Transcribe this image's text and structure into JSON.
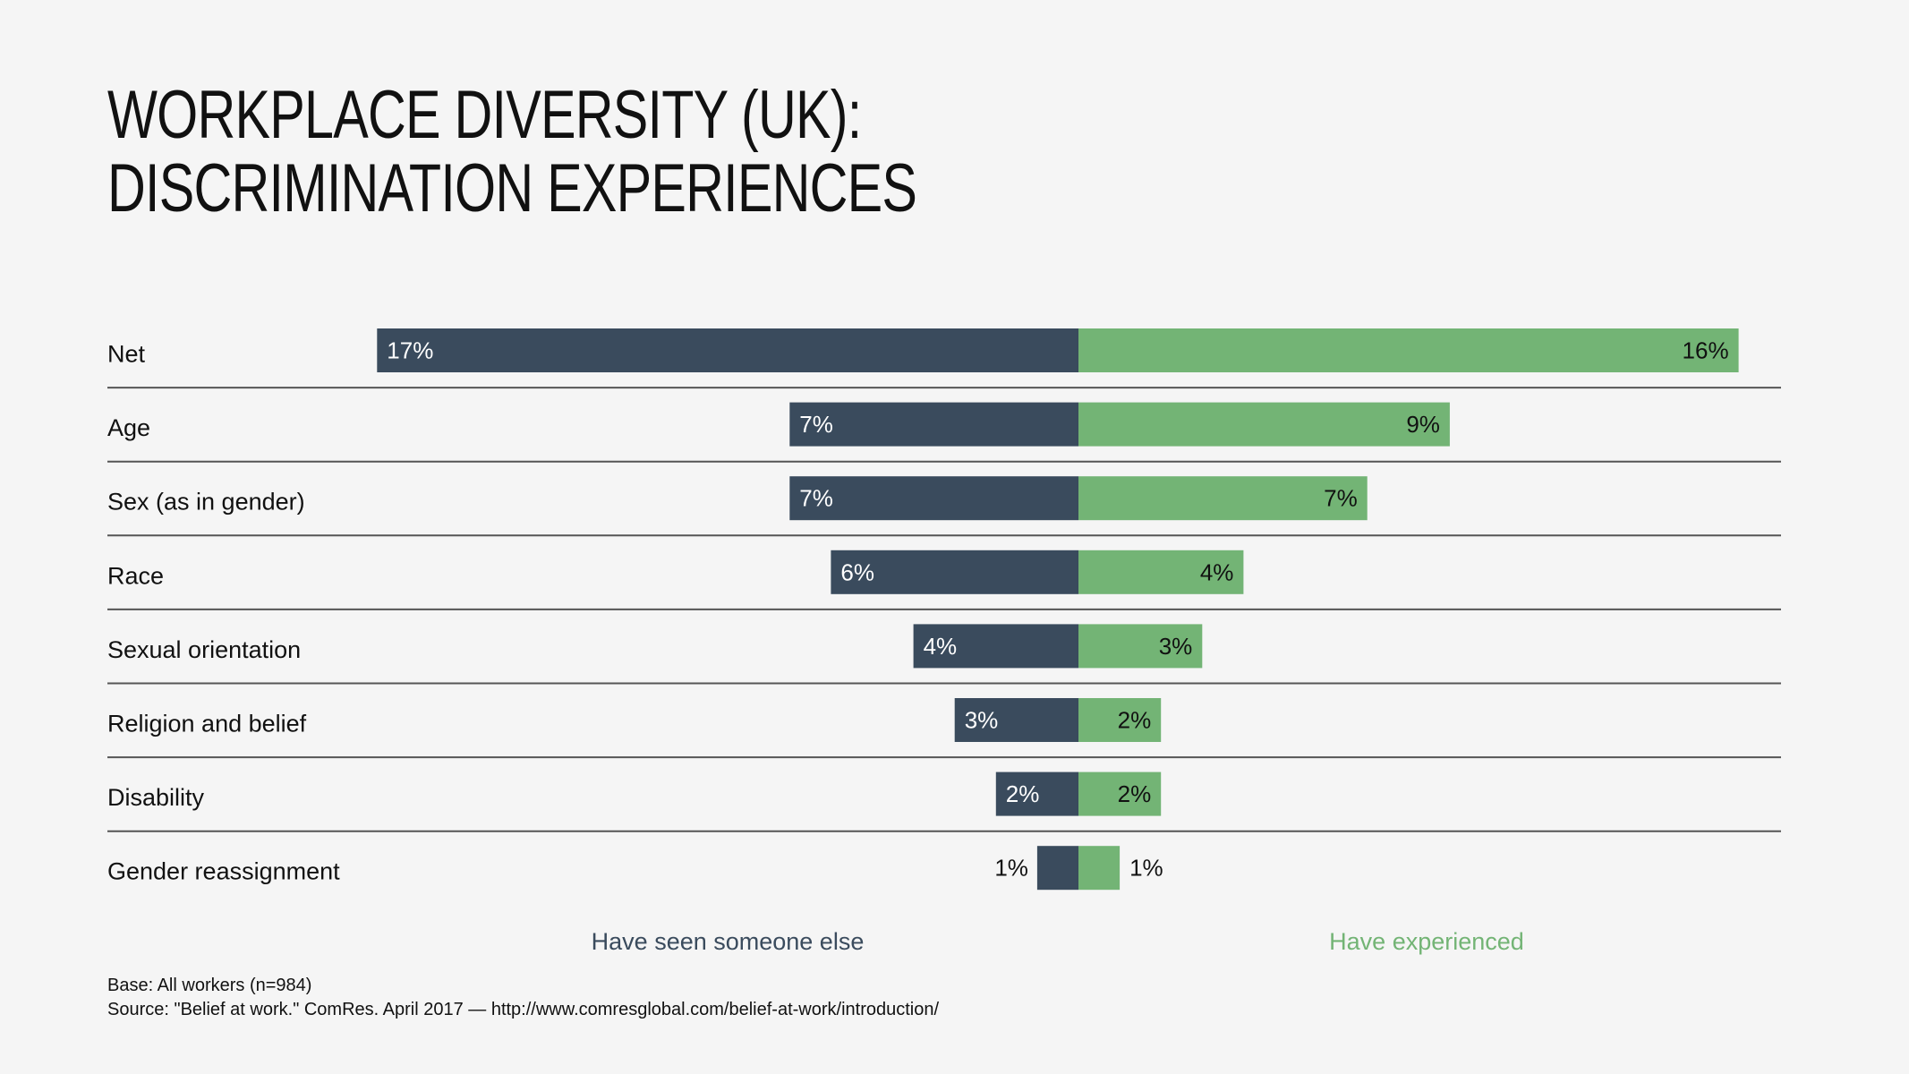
{
  "chart_data": {
    "type": "bar",
    "orientation": "horizontal-diverging",
    "title_lines": [
      "WORKPLACE DIVERSITY (UK):",
      "DISCRIMINATION EXPERIENCES"
    ],
    "categories": [
      "Net",
      "Age",
      "Sex (as in gender)",
      "Race",
      "Sexual orientation",
      "Religion and belief",
      "Disability",
      "Gender reassignment"
    ],
    "series": [
      {
        "name": "Have seen someone else",
        "color": "#3a4b5d",
        "values": [
          17,
          7,
          7,
          6,
          4,
          3,
          2,
          1
        ],
        "labels": [
          "17%",
          "7%",
          "7%",
          "6%",
          "4%",
          "3%",
          "2%",
          "1%"
        ]
      },
      {
        "name": "Have experienced",
        "color": "#73b475",
        "values": [
          16,
          9,
          7,
          4,
          3,
          2,
          2,
          1
        ],
        "labels": [
          "16%",
          "9%",
          "7%",
          "4%",
          "3%",
          "2%",
          "2%",
          "1%"
        ]
      }
    ],
    "unit": "%",
    "grid": false,
    "legend_placement": "bottom"
  },
  "footer": {
    "base": "Base: All workers (n=984)",
    "source": "Source: \"Belief at work.\" ComRes. April 2017 —  http://www.comresglobal.com/belief-at-work/introduction/"
  }
}
